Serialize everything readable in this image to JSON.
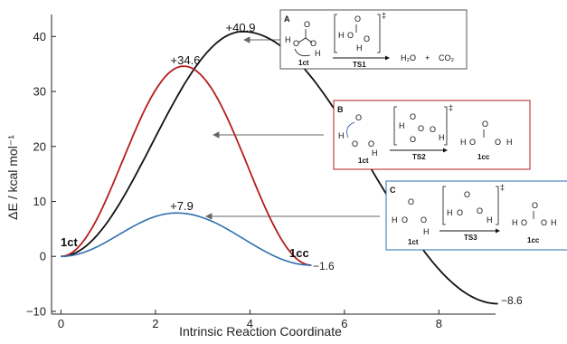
{
  "chart_data": {
    "type": "line",
    "xlabel": "Intrinsic Reaction Coordinate",
    "ylabel": "ΔE / kcal mol⁻¹",
    "xlim": [
      -0.2,
      9.2
    ],
    "ylim": [
      -10.5,
      44
    ],
    "x_ticks": [
      "0",
      "2",
      "4",
      "6",
      "8"
    ],
    "y_ticks": [
      "−10",
      "0",
      "10",
      "20",
      "30",
      "40"
    ],
    "series": [
      {
        "color": "#111111",
        "peak_x": 3.85,
        "peak_y": 40.9,
        "end_x": 9.25,
        "end_y": -8.6
      },
      {
        "color": "#b51d1d",
        "peak_x": 2.6,
        "peak_y": 34.6,
        "end_x": 5.3,
        "end_y": -1.6
      },
      {
        "color": "#2f6fae",
        "peak_x": 2.45,
        "peak_y": 7.9,
        "end_x": 5.3,
        "end_y": -1.6
      }
    ],
    "peak_labels": [
      "+40.9",
      "+34.6",
      "+7.9"
    ],
    "end_labels": [
      "−1.6",
      "−8.6"
    ],
    "species_labels": [
      "1ct",
      "1cc"
    ]
  },
  "insets": [
    {
      "letter": "A",
      "ts": "TS1",
      "reactant": "1ct",
      "products": [
        "H₂O",
        "+",
        "CO₂"
      ],
      "border": "#555555"
    },
    {
      "letter": "B",
      "ts": "TS2",
      "reactant": "1ct",
      "product": "1cc",
      "border": "#b51d1d"
    },
    {
      "letter": "C",
      "ts": "TS3",
      "reactant": "1ct",
      "product": "1cc",
      "border": "#2f6fae"
    }
  ],
  "atoms": {
    "H": "H",
    "O": "O",
    "dagger": "‡"
  }
}
